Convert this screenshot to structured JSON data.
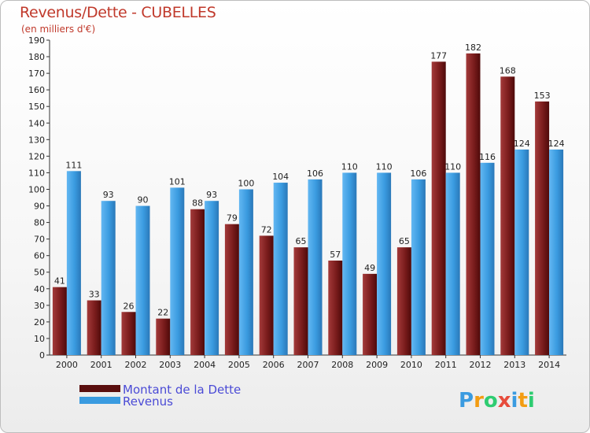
{
  "chart_data": {
    "type": "bar",
    "title": "Revenus/Dette - CUBELLES",
    "subtitle": "(en milliers d'€)",
    "categories": [
      "2000",
      "2001",
      "2002",
      "2003",
      "2004",
      "2005",
      "2006",
      "2007",
      "2008",
      "2009",
      "2010",
      "2011",
      "2012",
      "2013",
      "2014"
    ],
    "series": [
      {
        "name": "Montant de la Dette",
        "color": "#7a1c1c",
        "values": [
          41,
          33,
          26,
          22,
          88,
          79,
          72,
          65,
          57,
          49,
          65,
          177,
          182,
          168,
          153
        ]
      },
      {
        "name": "Revenus",
        "color": "#3a9be0",
        "values": [
          111,
          93,
          90,
          101,
          93,
          100,
          104,
          106,
          110,
          110,
          106,
          110,
          116,
          124,
          124
        ]
      }
    ],
    "ylim": [
      0,
      190
    ],
    "yticks": [
      0,
      10,
      20,
      30,
      40,
      50,
      60,
      70,
      80,
      90,
      100,
      110,
      120,
      130,
      140,
      150,
      160,
      170,
      180,
      190
    ],
    "grid": false,
    "legend_position": "bottom-left",
    "watermark": "Proxiti"
  }
}
